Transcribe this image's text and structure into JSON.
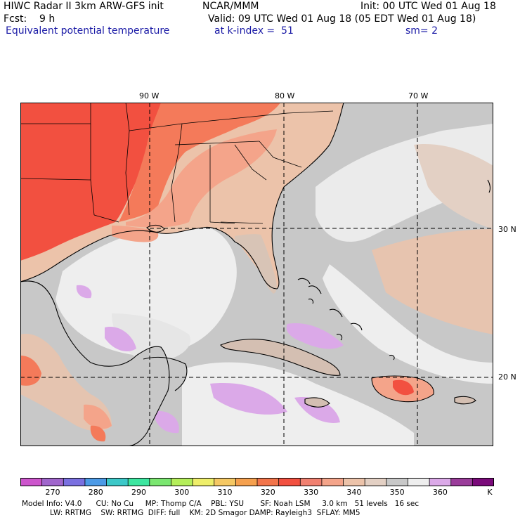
{
  "header": {
    "model_title": "HIWC Radar II 3km ARW-GFS init",
    "institution": "NCAR/MMM",
    "init": "Init: 00 UTC Wed 01 Aug 18",
    "forecast": "Fcst:    9 h",
    "valid": "Valid: 09 UTC Wed 01 Aug 18 (05 EDT Wed 01 Aug 18)",
    "field": "Equivalent potential temperature",
    "level": "at k-index =  51",
    "smoothing": "sm= 2"
  },
  "map": {
    "longitude_labels": [
      "90 W",
      "80 W",
      "70 W"
    ],
    "latitude_labels": [
      "30 N",
      "20 N"
    ],
    "colors": {
      "ocean_grey": "#c8c8c8",
      "light": "#eeeeee",
      "lavender": "#dba9e8",
      "tan": "#ecc3aa",
      "salmon": "#f4a48a",
      "orange_red": "#f47a5a",
      "red": "#f25040",
      "coast": "#000000"
    }
  },
  "colorbar": {
    "tick_labels": [
      "270",
      "280",
      "290",
      "300",
      "310",
      "320",
      "330",
      "340",
      "350",
      "360"
    ],
    "unit": "K",
    "colors": [
      "#cc55cc",
      "#a066cc",
      "#7a70e0",
      "#4c9ae6",
      "#3cc8c8",
      "#3ce6a0",
      "#7ae670",
      "#b4ee5a",
      "#eeee6a",
      "#f5c864",
      "#f5a04e",
      "#f2744a",
      "#f25040",
      "#f08070",
      "#f4a48a",
      "#ecc3aa",
      "#e3d0c4",
      "#c8c8c8",
      "#eeeeee",
      "#dba9e8",
      "#9a3c9a",
      "#7a0a7a"
    ]
  },
  "footer": {
    "line1": "Model Info: V4.0      CU: No Cu     MP: Thomp C/A    PBL: YSU       SF: Noah LSM     3.0 km   51 levels   16 sec",
    "line2": "            LW: RRTMG    SW: RRTMG  DIFF: full    KM: 2D Smagor DAMP: Rayleigh3  SFLAY: MM5"
  }
}
